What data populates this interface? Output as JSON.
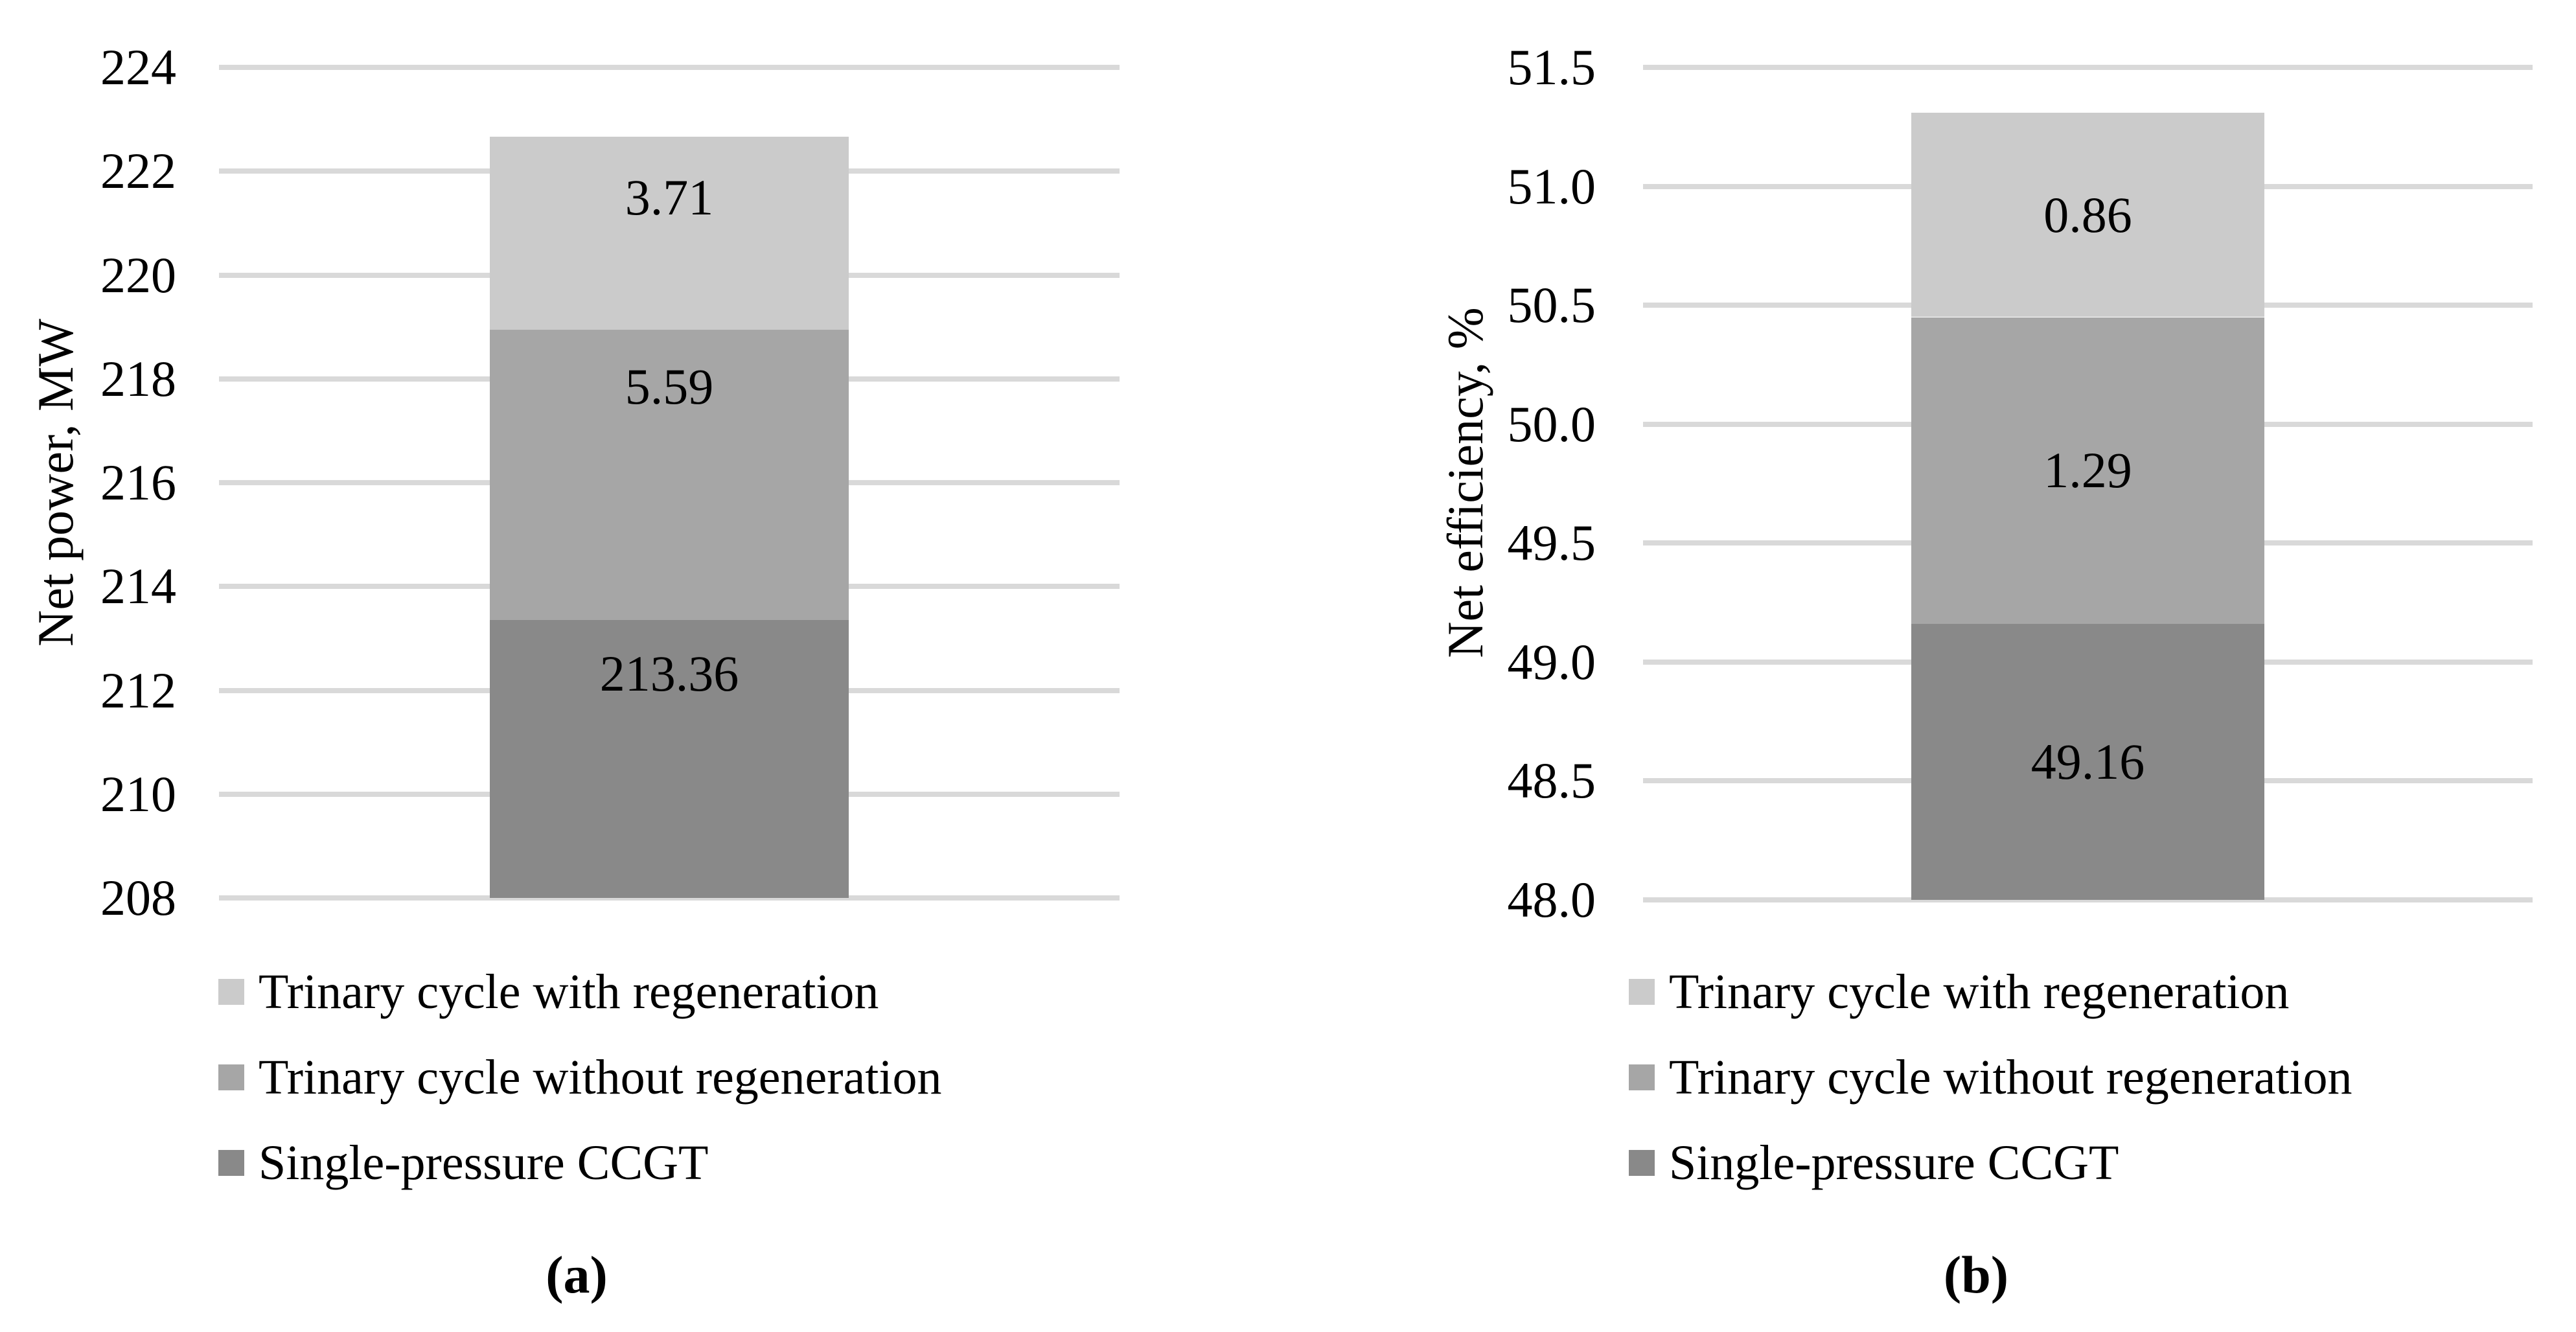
{
  "colors": {
    "background": "#ffffff",
    "gridline": "#d9d9d9",
    "text": "#000000",
    "series_light": "#cbcbcb",
    "series_medium": "#a6a6a6",
    "series_dark": "#898989"
  },
  "legend": {
    "items": [
      {
        "label": "Trinary cycle with regeneration",
        "color": "#cbcbcb"
      },
      {
        "label": "Trinary cycle without regeneration",
        "color": "#a6a6a6"
      },
      {
        "label": "Single-pressure CCGT",
        "color": "#898989"
      }
    ]
  },
  "chart_data": [
    {
      "id": "a",
      "type": "bar",
      "stacked": true,
      "title": "",
      "xlabel": "",
      "ylabel": "Net power, MW",
      "ylim": [
        208,
        224
      ],
      "ytick_step": 2,
      "yticks": [
        "224",
        "222",
        "220",
        "218",
        "216",
        "214",
        "212",
        "210",
        "208"
      ],
      "grid": true,
      "legend_position": "bottom-left",
      "series": [
        {
          "name": "Single-pressure CCGT",
          "value": 213.36,
          "label": "213.36",
          "color": "#898989"
        },
        {
          "name": "Trinary cycle without regeneration",
          "value": 5.59,
          "label": "5.59",
          "color": "#a6a6a6"
        },
        {
          "name": "Trinary cycle with regeneration",
          "value": 3.71,
          "label": "3.71",
          "color": "#cbcbcb"
        }
      ],
      "stack_total": 222.66,
      "caption": "(a)"
    },
    {
      "id": "b",
      "type": "bar",
      "stacked": true,
      "title": "",
      "xlabel": "",
      "ylabel": "Net efficiency, %",
      "ylim": [
        48.0,
        51.5
      ],
      "ytick_step": 0.5,
      "yticks": [
        "51.5",
        "51.0",
        "50.5",
        "50.0",
        "49.5",
        "49.0",
        "48.5",
        "48.0"
      ],
      "grid": true,
      "legend_position": "bottom-left",
      "series": [
        {
          "name": "Single-pressure CCGT",
          "value": 49.16,
          "label": "49.16",
          "color": "#898989"
        },
        {
          "name": "Trinary cycle without regeneration",
          "value": 1.29,
          "label": "1.29",
          "color": "#a6a6a6"
        },
        {
          "name": "Trinary cycle with regeneration",
          "value": 0.86,
          "label": "0.86",
          "color": "#cbcbcb"
        }
      ],
      "stack_total": 51.31,
      "caption": "(b)"
    }
  ]
}
